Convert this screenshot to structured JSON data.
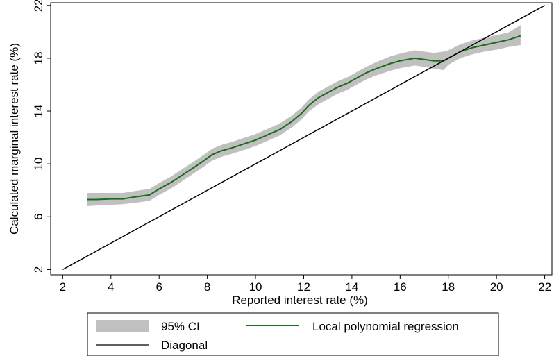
{
  "chart_data": {
    "type": "line",
    "xlabel": "Reported interest rate (%)",
    "ylabel": "Calculated marginal interest rate (%)",
    "xlim": [
      1.5,
      22.3
    ],
    "ylim": [
      1.6,
      22.2
    ],
    "x_ticks": [
      "2",
      "4",
      "6",
      "8",
      "10",
      "12",
      "14",
      "16",
      "18",
      "20",
      "22"
    ],
    "y_ticks": [
      "2",
      "6",
      "10",
      "14",
      "18",
      "22"
    ],
    "grid": false,
    "legend_position": "bottom",
    "series": [
      {
        "name": "Local polynomial regression",
        "color": "#1a6b1a",
        "x": [
          3.0,
          3.4,
          4.0,
          4.5,
          5.0,
          5.6,
          6.0,
          6.5,
          7.0,
          7.5,
          7.9,
          8.2,
          8.6,
          9.0,
          9.5,
          10.0,
          10.5,
          11.0,
          11.5,
          11.9,
          12.2,
          12.6,
          13.0,
          13.4,
          13.8,
          14.2,
          14.6,
          15.0,
          15.6,
          16.0,
          16.6,
          17.0,
          17.4,
          17.8,
          18.0,
          18.5,
          19.0,
          19.5,
          20.0,
          20.5,
          21.0
        ],
        "y": [
          7.3,
          7.3,
          7.35,
          7.35,
          7.5,
          7.65,
          8.1,
          8.6,
          9.2,
          9.8,
          10.3,
          10.7,
          11.0,
          11.2,
          11.5,
          11.8,
          12.2,
          12.6,
          13.2,
          13.8,
          14.4,
          15.0,
          15.4,
          15.8,
          16.1,
          16.5,
          16.9,
          17.2,
          17.6,
          17.8,
          18.0,
          17.9,
          17.8,
          17.8,
          18.0,
          18.5,
          18.8,
          19.0,
          19.2,
          19.4,
          19.7
        ]
      },
      {
        "name": "95% CI",
        "color": "#c0c0c0",
        "x": [
          3.0,
          3.4,
          4.0,
          4.5,
          5.0,
          5.6,
          6.0,
          6.5,
          7.0,
          7.5,
          7.9,
          8.2,
          8.6,
          9.0,
          9.5,
          10.0,
          10.5,
          11.0,
          11.5,
          11.9,
          12.2,
          12.6,
          13.0,
          13.4,
          13.8,
          14.2,
          14.6,
          15.0,
          15.6,
          16.0,
          16.6,
          17.0,
          17.4,
          17.8,
          18.0,
          18.5,
          19.0,
          19.5,
          20.0,
          20.5,
          21.0
        ],
        "lower": [
          6.8,
          6.85,
          6.9,
          6.95,
          7.05,
          7.2,
          7.65,
          8.15,
          8.75,
          9.35,
          9.85,
          10.25,
          10.55,
          10.75,
          11.05,
          11.35,
          11.75,
          12.15,
          12.75,
          13.35,
          13.95,
          14.5,
          14.9,
          15.3,
          15.6,
          16.0,
          16.4,
          16.7,
          17.05,
          17.25,
          17.45,
          17.35,
          17.2,
          17.1,
          17.5,
          18.0,
          18.3,
          18.5,
          18.65,
          18.85,
          19.0
        ],
        "upper": [
          7.8,
          7.8,
          7.8,
          7.8,
          7.95,
          8.1,
          8.55,
          9.05,
          9.65,
          10.25,
          10.75,
          11.15,
          11.45,
          11.65,
          11.95,
          12.25,
          12.65,
          13.05,
          13.65,
          14.25,
          14.85,
          15.45,
          15.85,
          16.25,
          16.55,
          16.95,
          17.35,
          17.7,
          18.15,
          18.35,
          18.6,
          18.5,
          18.4,
          18.5,
          18.6,
          19.05,
          19.35,
          19.55,
          19.75,
          19.95,
          20.5
        ]
      },
      {
        "name": "Diagonal",
        "color": "#000000",
        "x": [
          2,
          22
        ],
        "y": [
          2,
          22
        ]
      }
    ],
    "legend": {
      "ci": "95% CI",
      "fit": "Local polynomial regression",
      "diagonal": "Diagonal"
    }
  }
}
